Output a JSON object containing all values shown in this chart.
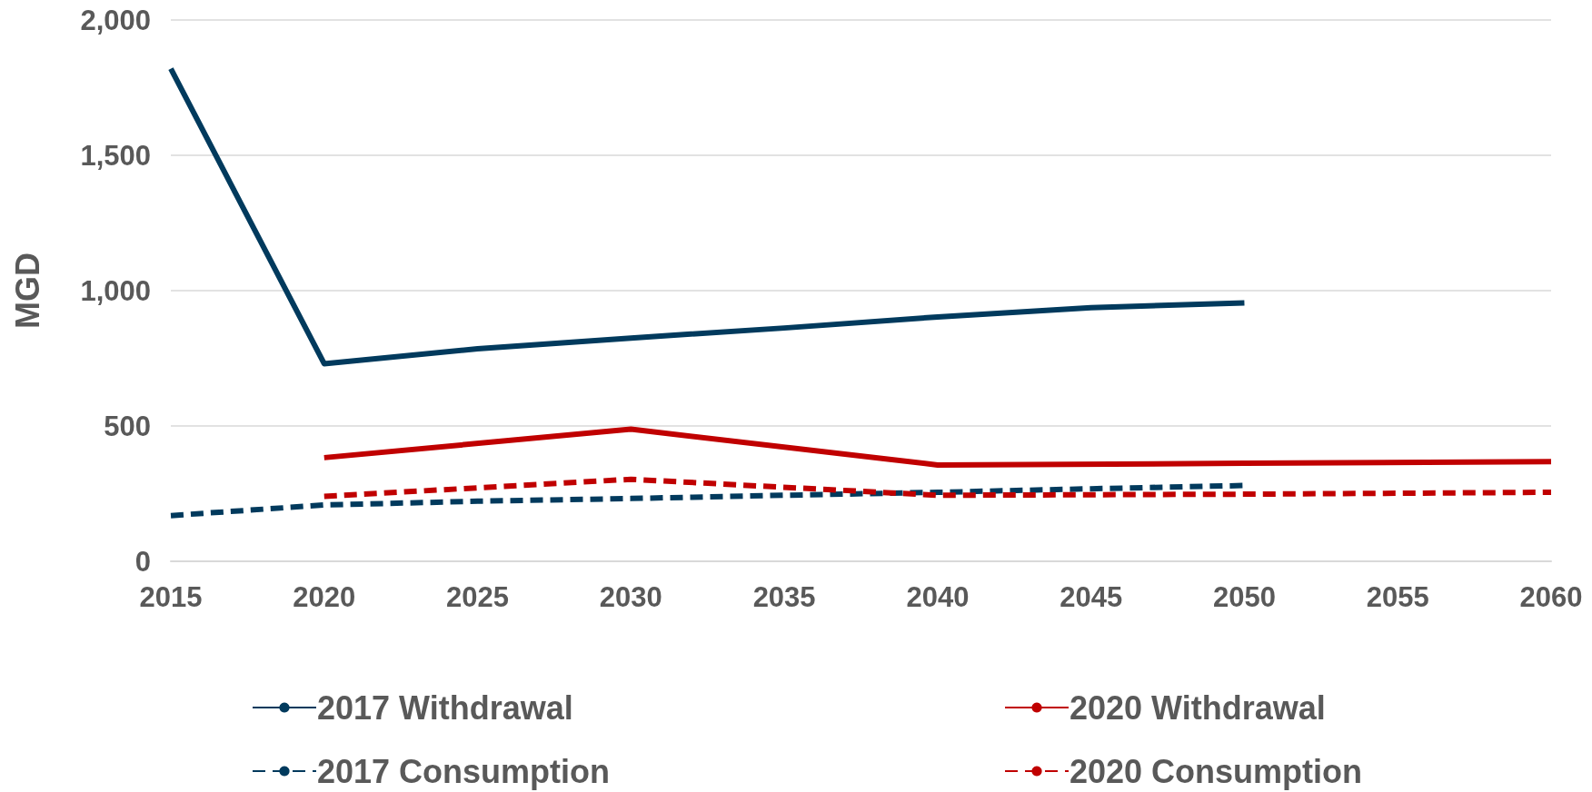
{
  "chart_data": {
    "type": "line",
    "ylabel": "MGD",
    "x": [
      2015,
      2020,
      2025,
      2030,
      2035,
      2040,
      2045,
      2050
    ],
    "series": [
      {
        "name": "2017 Withdrawal",
        "color": "#013a5d",
        "line_style": "solid",
        "values": [
          1820,
          730,
          785,
          825,
          862,
          903,
          937,
          955
        ]
      },
      {
        "name": "2020 Withdrawal",
        "color": "#c00000",
        "line_style": "solid",
        "x": [
          2020,
          2030,
          2040,
          2050,
          2060
        ],
        "values": [
          383,
          488,
          356,
          362,
          368
        ]
      },
      {
        "name": "2017 Consumption",
        "color": "#013a5d",
        "line_style": "dashed",
        "values": [
          169,
          208,
          222,
          232,
          244,
          255,
          268,
          280
        ]
      },
      {
        "name": "2020 Consumption",
        "color": "#c00000",
        "line_style": "dashed",
        "x": [
          2020,
          2030,
          2040,
          2050,
          2060
        ],
        "values": [
          240,
          303,
          244,
          248,
          255
        ]
      }
    ],
    "xlim": [
      2015,
      2060
    ],
    "xticks": [
      2015,
      2020,
      2025,
      2030,
      2035,
      2040,
      2045,
      2050,
      2055,
      2060
    ],
    "ylim": [
      0,
      2000
    ],
    "yticks": [
      0,
      500,
      {
        "value": 1000,
        "label": "1,000"
      },
      {
        "value": 1500,
        "label": "1,500"
      },
      {
        "value": 2000,
        "label": "2,000"
      }
    ],
    "grid": "y",
    "legend": "bottom",
    "marker": "none"
  }
}
